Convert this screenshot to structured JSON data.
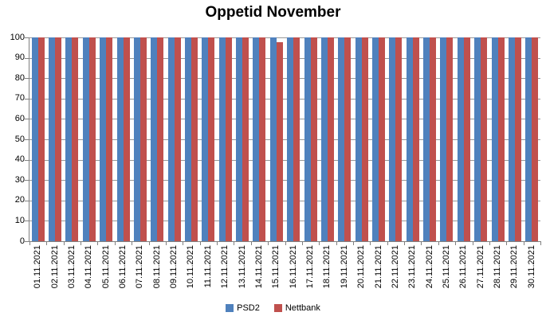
{
  "chart_data": {
    "type": "bar",
    "title": "Oppetid November",
    "categories": [
      "01.11.2021",
      "02.11.2021",
      "03.11.2021",
      "04.11.2021",
      "05.11.2021",
      "06.11.2021",
      "07.11.2021",
      "08.11.2021",
      "09.11.2021",
      "10.11.2021",
      "11.11.2021",
      "12.11.2021",
      "13.11.2021",
      "14.11.2021",
      "15.11.2021",
      "16.11.2021",
      "17.11.2021",
      "18.11.2021",
      "19.11.2021",
      "20.11.2021",
      "21.11.2021",
      "22.11.2021",
      "23.11.2021",
      "24.11.2021",
      "25.11.2021",
      "26.11.2021",
      "27.11.2021",
      "28.11.2021",
      "29.11.2021",
      "30.11.2021"
    ],
    "series": [
      {
        "name": "PSD2",
        "color": "#4F81BD",
        "values": [
          100,
          100,
          100,
          100,
          100,
          100,
          100,
          100,
          100,
          100,
          100,
          100,
          100,
          100,
          100,
          100,
          100,
          100,
          100,
          100,
          100,
          100,
          100,
          100,
          100,
          100,
          100,
          100,
          100,
          100
        ]
      },
      {
        "name": "Nettbank",
        "color": "#C0504D",
        "values": [
          100,
          100,
          100,
          100,
          100,
          100,
          100,
          100,
          100,
          100,
          100,
          100,
          100,
          100,
          97.5,
          100,
          100,
          100,
          100,
          100,
          100,
          100,
          100,
          100,
          100,
          100,
          100,
          100,
          100,
          100
        ]
      }
    ],
    "xlabel": "",
    "ylabel": "",
    "ylim": [
      0,
      100
    ],
    "y_ticks": [
      0,
      10,
      20,
      30,
      40,
      50,
      60,
      70,
      80,
      90,
      100
    ],
    "grid": true,
    "legend_position": "bottom",
    "gridline_color": "#989898",
    "axis_color": "#808080"
  }
}
